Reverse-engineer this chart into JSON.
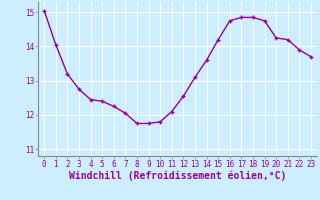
{
  "x": [
    0,
    1,
    2,
    3,
    4,
    5,
    6,
    7,
    8,
    9,
    10,
    11,
    12,
    13,
    14,
    15,
    16,
    17,
    18,
    19,
    20,
    21,
    22,
    23
  ],
  "y": [
    15.05,
    14.05,
    13.2,
    12.75,
    12.45,
    12.4,
    12.25,
    12.05,
    11.75,
    11.75,
    11.8,
    12.1,
    12.55,
    13.1,
    13.6,
    14.2,
    14.75,
    14.85,
    14.85,
    14.75,
    14.25,
    14.2,
    13.9,
    13.7
  ],
  "line_color": "#990099",
  "marker": "+",
  "bg_color": "#cceeff",
  "grid_color": "#ffffff",
  "spine_color": "#888888",
  "xlabel": "Windchill (Refroidissement éolien,°C)",
  "ylim": [
    10.8,
    15.3
  ],
  "xlim": [
    -0.5,
    23.5
  ],
  "yticks": [
    11,
    12,
    13,
    14,
    15
  ],
  "xticks": [
    0,
    1,
    2,
    3,
    4,
    5,
    6,
    7,
    8,
    9,
    10,
    11,
    12,
    13,
    14,
    15,
    16,
    17,
    18,
    19,
    20,
    21,
    22,
    23
  ],
  "tick_label_fontsize": 5.5,
  "xlabel_fontsize": 7.0,
  "linewidth": 1.0,
  "markersize": 3.5,
  "markeredgewidth": 1.0
}
